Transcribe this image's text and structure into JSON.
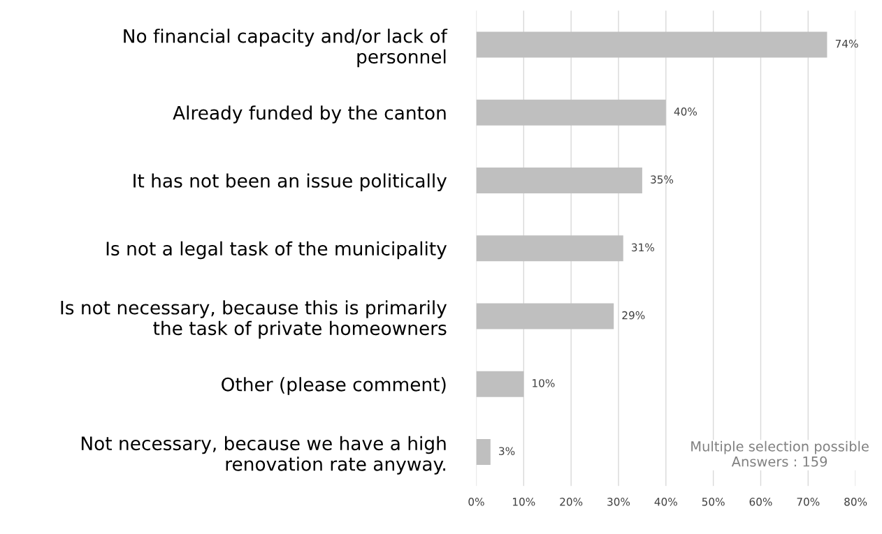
{
  "chart_data": {
    "type": "bar",
    "orientation": "horizontal",
    "categories": [
      "No financial capacity and/or lack of\npersonnel",
      "Already funded by the canton",
      "It has not been an issue politically",
      "Is not a legal task of the municipality",
      "Is not necessary, because this is primarily\nthe task of private homeowners",
      "Other (please comment)",
      "Not necessary, because we have a high\nrenovation rate anyway."
    ],
    "values": [
      74,
      40,
      35,
      31,
      29,
      10,
      3
    ],
    "value_labels": [
      "74%",
      "40%",
      "35%",
      "31%",
      "29%",
      "10%",
      "3%"
    ],
    "color": "#bfbfbf",
    "xlim": [
      0,
      80
    ],
    "xticks": [
      {
        "value": 0,
        "label": "0%"
      },
      {
        "value": 10,
        "label": "10%"
      },
      {
        "value": 20,
        "label": "20%"
      },
      {
        "value": 30,
        "label": "30%"
      },
      {
        "value": 40,
        "label": "40%"
      },
      {
        "value": 50,
        "label": "50%"
      },
      {
        "value": 60,
        "label": "60%"
      },
      {
        "value": 70,
        "label": "70%"
      },
      {
        "value": 80,
        "label": "80%"
      }
    ],
    "grid": "x",
    "annotations": [
      "Multiple selection possible\nAnswers : 159"
    ]
  }
}
